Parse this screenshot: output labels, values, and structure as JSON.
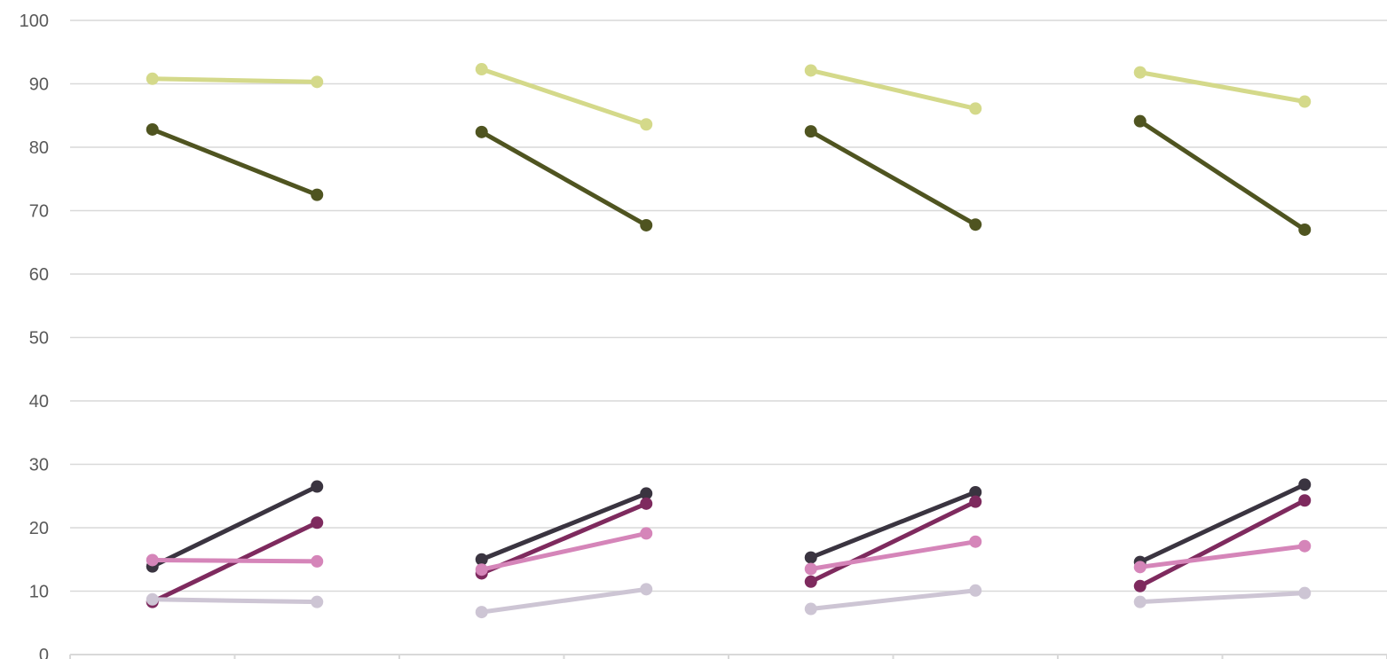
{
  "chart_data": {
    "type": "line",
    "ylim": [
      0,
      100
    ],
    "yticks": [
      "0",
      "10",
      "20",
      "30",
      "40",
      "50",
      "60",
      "70",
      "80",
      "90",
      "100"
    ],
    "grid": true,
    "groups": 4,
    "points_per_group": 2,
    "series": [
      {
        "color": "#d4d98a",
        "values": [
          [
            90.8,
            90.3
          ],
          [
            92.3,
            83.6
          ],
          [
            92.1,
            86.1
          ],
          [
            91.8,
            87.2
          ]
        ]
      },
      {
        "color": "#4f5420",
        "values": [
          [
            82.8,
            72.5
          ],
          [
            82.4,
            67.7
          ],
          [
            82.5,
            67.8
          ],
          [
            84.1,
            67.0
          ]
        ]
      },
      {
        "color": "#3a3440",
        "values": [
          [
            13.9,
            26.5
          ],
          [
            15.0,
            25.4
          ],
          [
            15.3,
            25.6
          ],
          [
            14.6,
            26.8
          ]
        ]
      },
      {
        "color": "#7e2a5e",
        "values": [
          [
            8.3,
            20.8
          ],
          [
            12.8,
            23.8
          ],
          [
            11.5,
            24.1
          ],
          [
            10.8,
            24.3
          ]
        ]
      },
      {
        "color": "#d585b9",
        "values": [
          [
            14.9,
            14.7
          ],
          [
            13.4,
            19.1
          ],
          [
            13.5,
            17.8
          ],
          [
            13.8,
            17.1
          ]
        ]
      },
      {
        "color": "#cdc5d4",
        "values": [
          [
            8.7,
            8.3
          ],
          [
            6.7,
            10.3
          ],
          [
            7.2,
            10.1
          ],
          [
            8.3,
            9.7
          ]
        ]
      }
    ]
  }
}
